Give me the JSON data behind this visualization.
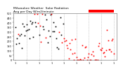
{
  "title": "Milwaukee Weather  Solar Radiation",
  "subtitle": "Avg per Day W/m2/minute",
  "bg_color": "#ffffff",
  "plot_bg": "#ffffff",
  "grid_color": "#aaaaaa",
  "y_min": 0,
  "y_max": 500,
  "ytick_labels": [
    "0",
    "50",
    "100",
    "150",
    "200",
    "250",
    "300",
    "350",
    "400",
    "450",
    "500"
  ],
  "ytick_vals": [
    0,
    50,
    100,
    150,
    200,
    250,
    300,
    350,
    400,
    450,
    500
  ],
  "num_weeks": 104,
  "red_color": "#ff0000",
  "black_color": "#000000",
  "highlight_color": "#ff0000",
  "num_dashed": 8,
  "marker_size": 1.2,
  "title_fontsize": 3.2,
  "tick_fontsize": 2.5
}
